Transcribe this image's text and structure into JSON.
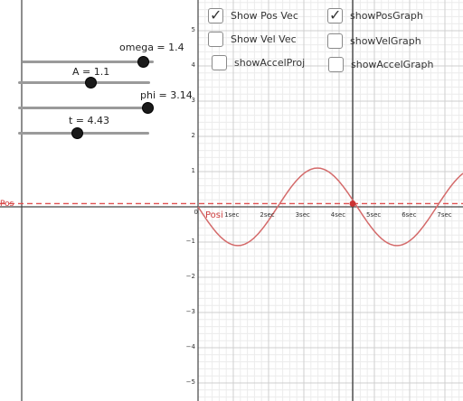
{
  "sliders": [
    {
      "label": "omega = 1.4",
      "fraction": 0.92
    },
    {
      "label": "A = 1.1",
      "fraction": 0.55
    },
    {
      "label": "phi = 3.14",
      "fraction": 1.0
    },
    {
      "label": "t = 4.43",
      "fraction": 0.45
    }
  ],
  "checkboxes": [
    {
      "label": "Show Pos Vec",
      "checked": true
    },
    {
      "label": "showPosGraph",
      "checked": true
    },
    {
      "label": "Show Vel Vec",
      "checked": false
    },
    {
      "label": "showVelGraph",
      "checked": false
    },
    {
      "label": "showAccelProj",
      "checked": false
    },
    {
      "label": "showAccelGraph",
      "checked": false
    }
  ],
  "check_glyph": "✓",
  "y_ticks": [
    "5",
    "4",
    "3",
    "2",
    "1",
    "0",
    "−1",
    "−2",
    "−3",
    "−4",
    "−5"
  ],
  "x_ticks": [
    "1sec",
    "2sec",
    "3sec",
    "4sec",
    "5sec",
    "6sec",
    "7sec"
  ],
  "pos_label_left": "Pos",
  "pos_label_graph": "Posi",
  "graph": {
    "omega": 1.4,
    "A": 1.1,
    "phi": 3.14,
    "t": 4.43,
    "curve_color": "#d46a6a",
    "pos_line_color": "#e05050",
    "point_color": "#cc3333"
  }
}
